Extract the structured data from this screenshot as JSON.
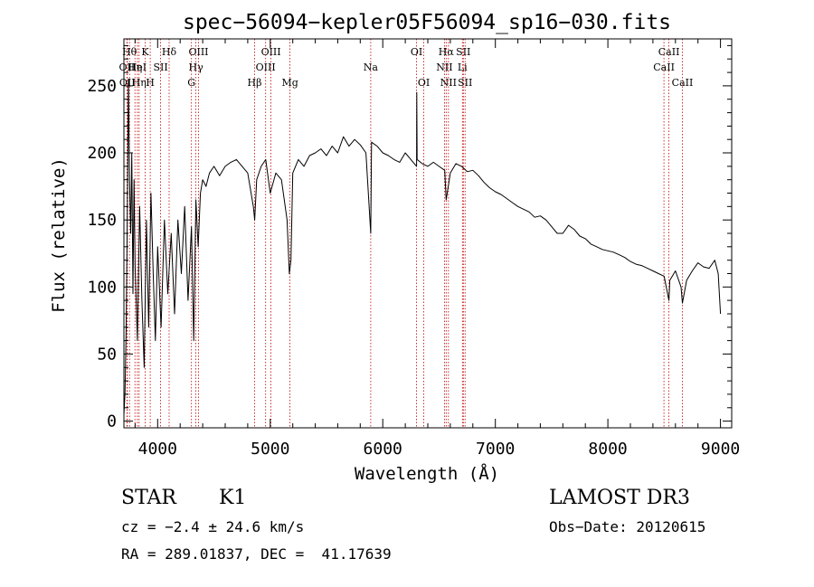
{
  "chart_data": {
    "type": "line",
    "title": "spec−56094−kepler05F56094_sp16−030.fits",
    "xlabel": "Wavelength (Å)",
    "ylabel": "Flux (relative)",
    "xlim": [
      3700,
      9100
    ],
    "ylim": [
      -5,
      285
    ],
    "x_ticks": [
      4000,
      5000,
      6000,
      7000,
      8000,
      9000
    ],
    "x_tick_labels": [
      "4000",
      "5000",
      "6000",
      "7000",
      "8000",
      "9000"
    ],
    "y_ticks": [
      0,
      50,
      100,
      150,
      200,
      250
    ],
    "y_tick_labels": [
      "0",
      "50",
      "100",
      "150",
      "200",
      "250"
    ],
    "series": [
      {
        "name": "spectrum",
        "x": [
          3700,
          3710,
          3720,
          3730,
          3740,
          3750,
          3760,
          3770,
          3780,
          3790,
          3800,
          3820,
          3840,
          3860,
          3880,
          3900,
          3920,
          3940,
          3960,
          3980,
          4000,
          4030,
          4060,
          4090,
          4120,
          4150,
          4180,
          4210,
          4240,
          4270,
          4300,
          4320,
          4340,
          4360,
          4380,
          4400,
          4430,
          4460,
          4500,
          4550,
          4600,
          4650,
          4700,
          4750,
          4800,
          4850,
          4862,
          4880,
          4920,
          4960,
          5000,
          5050,
          5100,
          5150,
          5170,
          5184,
          5200,
          5250,
          5300,
          5350,
          5400,
          5450,
          5500,
          5550,
          5600,
          5650,
          5700,
          5750,
          5800,
          5850,
          5893,
          5900,
          5950,
          6000,
          6050,
          6100,
          6150,
          6200,
          6250,
          6300,
          6302,
          6305,
          6350,
          6400,
          6450,
          6500,
          6550,
          6563,
          6600,
          6650,
          6700,
          6750,
          6800,
          6850,
          6900,
          6950,
          7000,
          7050,
          7100,
          7150,
          7200,
          7250,
          7300,
          7350,
          7400,
          7450,
          7500,
          7550,
          7600,
          7650,
          7700,
          7750,
          7800,
          7850,
          7900,
          7950,
          8000,
          8050,
          8100,
          8150,
          8200,
          8250,
          8300,
          8350,
          8400,
          8450,
          8500,
          8542,
          8550,
          8600,
          8650,
          8662,
          8700,
          8750,
          8800,
          8850,
          8900,
          8950,
          8980,
          9000
        ],
        "y": [
          5,
          20,
          70,
          150,
          255,
          180,
          140,
          200,
          95,
          180,
          115,
          60,
          160,
          90,
          40,
          150,
          70,
          170,
          110,
          60,
          130,
          70,
          150,
          95,
          140,
          80,
          150,
          110,
          160,
          90,
          145,
          60,
          165,
          130,
          170,
          180,
          175,
          185,
          190,
          183,
          190,
          193,
          195,
          190,
          185,
          160,
          150,
          180,
          190,
          195,
          170,
          185,
          180,
          150,
          110,
          120,
          185,
          195,
          190,
          198,
          200,
          203,
          198,
          205,
          200,
          212,
          205,
          210,
          206,
          200,
          140,
          208,
          205,
          200,
          198,
          195,
          193,
          200,
          195,
          190,
          245,
          195,
          192,
          190,
          193,
          190,
          187,
          165,
          185,
          192,
          190,
          186,
          187,
          183,
          178,
          174,
          171,
          169,
          166,
          163,
          160,
          158,
          156,
          152,
          153,
          150,
          145,
          140,
          140,
          146,
          143,
          138,
          136,
          132,
          130,
          128,
          127,
          126,
          124,
          122,
          119,
          117,
          116,
          114,
          112,
          110,
          108,
          90,
          105,
          112,
          100,
          88,
          105,
          112,
          118,
          115,
          114,
          120,
          110,
          80
        ]
      }
    ],
    "line_labels": [
      {
        "x": 3727,
        "row": 2,
        "text": "OII"
      },
      {
        "x": 3750,
        "row": 1,
        "text": "Hθ"
      },
      {
        "x": 3730,
        "row": 3,
        "text": "OII"
      },
      {
        "x": 3798,
        "row": 2,
        "text": "Hη"
      },
      {
        "x": 3820,
        "row": 2,
        "text": "HeI"
      },
      {
        "x": 3835,
        "row": 3,
        "text": "Hη"
      },
      {
        "x": 3889,
        "row": 1,
        "text": "K"
      },
      {
        "x": 3934,
        "row": 3,
        "text": "H"
      },
      {
        "x": 4026,
        "row": 2,
        "text": "SII"
      },
      {
        "x": 4102,
        "row": 1,
        "text": "Hδ"
      },
      {
        "x": 4300,
        "row": 3,
        "text": "G"
      },
      {
        "x": 4340,
        "row": 2,
        "text": "Hγ"
      },
      {
        "x": 4363,
        "row": 1,
        "text": "OIII"
      },
      {
        "x": 4861,
        "row": 3,
        "text": "Hβ"
      },
      {
        "x": 4959,
        "row": 2,
        "text": "OIII"
      },
      {
        "x": 5007,
        "row": 1,
        "text": "OIII"
      },
      {
        "x": 5175,
        "row": 3,
        "text": "Mg"
      },
      {
        "x": 5893,
        "row": 2,
        "text": "Na"
      },
      {
        "x": 6300,
        "row": 1,
        "text": "OI"
      },
      {
        "x": 6364,
        "row": 3,
        "text": "OI"
      },
      {
        "x": 6548,
        "row": 2,
        "text": "NII"
      },
      {
        "x": 6563,
        "row": 1,
        "text": "Hα"
      },
      {
        "x": 6583,
        "row": 3,
        "text": "NII"
      },
      {
        "x": 6708,
        "row": 2,
        "text": "Li"
      },
      {
        "x": 6716,
        "row": 1,
        "text": "SII"
      },
      {
        "x": 6731,
        "row": 3,
        "text": "SII"
      },
      {
        "x": 8498,
        "row": 2,
        "text": "CaII"
      },
      {
        "x": 8542,
        "row": 1,
        "text": "CaII"
      },
      {
        "x": 8662,
        "row": 3,
        "text": "CaII"
      }
    ]
  },
  "info": {
    "object_type": "STAR",
    "subclass": "K1",
    "survey": "LAMOST DR3",
    "cz": "cz = −2.4 ± 24.6 km/s",
    "obs_date": "Obs−Date: 20120615",
    "radec": "RA = 289.01837, DEC =  41.17639"
  }
}
